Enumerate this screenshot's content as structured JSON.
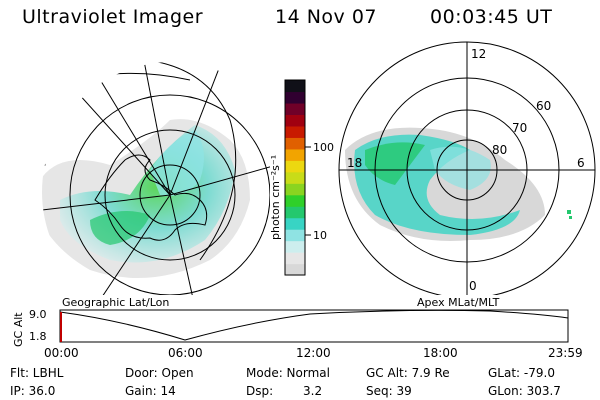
{
  "header": {
    "title": "Ultraviolet Imager",
    "date": "14 Nov 07",
    "time": "00:03:45 UT"
  },
  "left_panel": {
    "label": "Geographic Lat/Lon"
  },
  "right_panel": {
    "label": "Apex MLat/MLT",
    "mlt_labels": [
      "12",
      "18",
      "6",
      "0"
    ],
    "mlat_labels": [
      "60",
      "70",
      "80"
    ]
  },
  "colorbar": {
    "unit_label": "photon cm⁻²s⁻¹",
    "ticks": [
      "100",
      "10"
    ],
    "colors": [
      "#d8d8d8",
      "#e6e6e6",
      "#cdeeee",
      "#8fe3e3",
      "#38d4c4",
      "#24c86e",
      "#2fd02a",
      "#8ad420",
      "#c8dc18",
      "#ecd810",
      "#f2a400",
      "#e06000",
      "#c81a00",
      "#a00010",
      "#700028",
      "#300030",
      "#101018"
    ]
  },
  "altitude_plot": {
    "ylabel": "GC Alt",
    "yticks": [
      "9.0",
      "1.8"
    ],
    "xticks": [
      "00:00",
      "06:00",
      "12:00",
      "18:00",
      "23:59"
    ]
  },
  "footer": {
    "filter": "Flt: LBHL",
    "door": "Door: Open",
    "mode": "Mode: Normal",
    "gc_alt": "GC Alt: 7.9 Re",
    "glat": "GLat: -79.0",
    "ip": "IP: 36.0",
    "gain": "Gain: 14",
    "dsp_label": "Dsp:",
    "dsp_value": "3.2",
    "seq": "Seq: 39",
    "glon": "GLon: 303.7"
  }
}
